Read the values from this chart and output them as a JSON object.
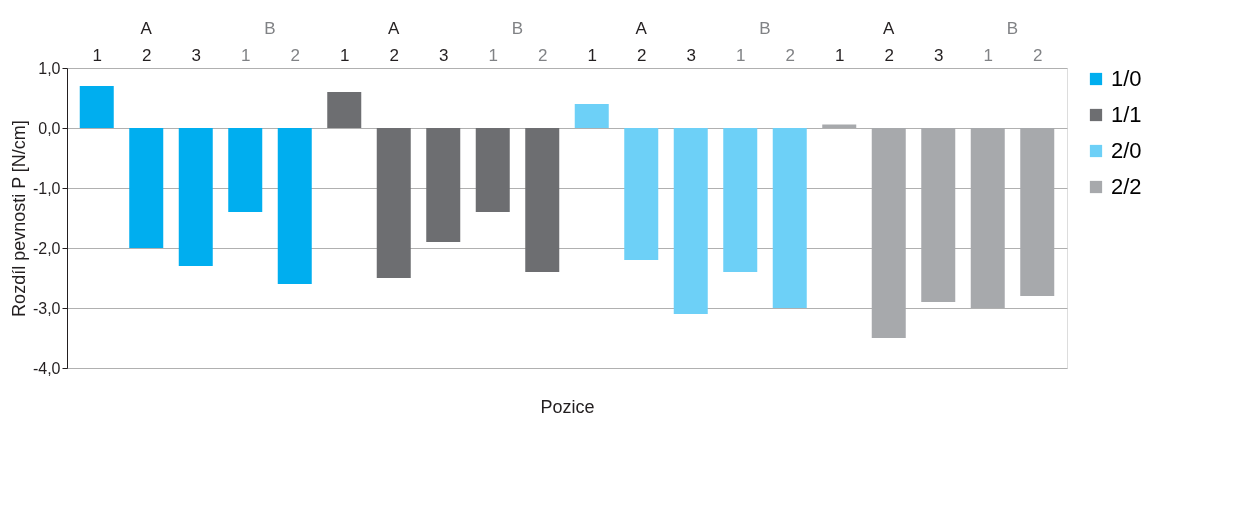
{
  "chart_data": {
    "type": "bar",
    "xlabel": "Pozice",
    "ylabel": "Rozdíl pevnosti P [N/cm]",
    "categories": [
      "1",
      "2",
      "3",
      "1",
      "2",
      "1",
      "2",
      "3",
      "1",
      "2",
      "1",
      "2",
      "3",
      "1",
      "2",
      "1",
      "2",
      "3",
      "1",
      "2"
    ],
    "annotations": [
      "A",
      "B",
      "A",
      "B",
      "A",
      "B",
      "A",
      "B"
    ],
    "series": [
      {
        "name": "1/0",
        "color": "#00aeef",
        "values": [
          0.7,
          -2.0,
          -2.3,
          -1.4,
          -2.6,
          null,
          null,
          null,
          null,
          null,
          null,
          null,
          null,
          null,
          null,
          null,
          null,
          null,
          null,
          null
        ]
      },
      {
        "name": "1/1",
        "color": "#6d6e71",
        "values": [
          null,
          null,
          null,
          null,
          null,
          0.6,
          -2.5,
          -1.9,
          -1.4,
          -2.4,
          null,
          null,
          null,
          null,
          null,
          null,
          null,
          null,
          null,
          null
        ]
      },
      {
        "name": "2/0",
        "color": "#6dd0f7",
        "values": [
          null,
          null,
          null,
          null,
          null,
          null,
          null,
          null,
          null,
          null,
          0.4,
          -2.2,
          -3.1,
          -2.4,
          -3.0,
          null,
          null,
          null,
          null,
          null
        ]
      },
      {
        "name": "2/2",
        "color": "#a7a9ac",
        "values": [
          null,
          null,
          null,
          null,
          null,
          null,
          null,
          null,
          null,
          null,
          null,
          null,
          null,
          null,
          null,
          0.06,
          -3.5,
          -2.9,
          -3.0,
          -2.8
        ]
      }
    ],
    "ylim": [
      -4,
      1
    ],
    "yticks": [
      {
        "value": 1,
        "label": "1,0"
      },
      {
        "value": 0,
        "label": "0,0"
      },
      {
        "value": -1,
        "label": "-1,0"
      },
      {
        "value": -2,
        "label": "-2,0"
      },
      {
        "value": -3,
        "label": "-3,0"
      },
      {
        "value": -4,
        "label": "-4,0"
      }
    ],
    "grid": "y",
    "legend": "right"
  }
}
